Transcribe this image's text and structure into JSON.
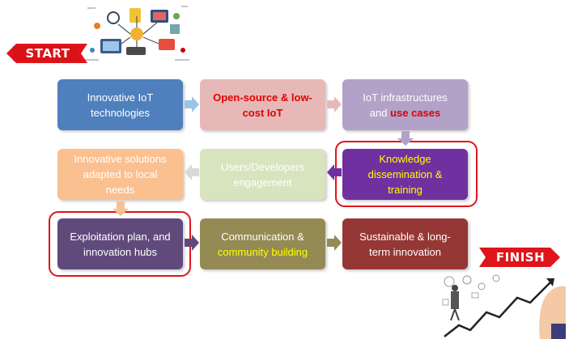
{
  "banners": {
    "start": "START",
    "finish": "FINISH"
  },
  "illustrations": {
    "top": "iot-devices-illustration",
    "bottom": "growth-chart-illustration"
  },
  "colors": {
    "highlight": "#e0141b",
    "blue": "#4f80bd",
    "pink": "#e6b9b8",
    "lavender": "#b2a2c7",
    "peach": "#fac090",
    "lightgreen": "#d7e4bd",
    "purple": "#7030a0",
    "darkpurple": "#604a7b",
    "olive": "#948a54",
    "darkred": "#953735",
    "accent_red": "#e00000",
    "accent_yellow": "#ffff00"
  },
  "boxes": [
    {
      "id": "box1",
      "lines": [
        "Innovative IoT",
        "technologies"
      ]
    },
    {
      "id": "box2",
      "lines": [
        "Open-source & low-",
        "cost IoT"
      ]
    },
    {
      "id": "box3",
      "line1": "IoT infrastructures",
      "line2_plain": "and ",
      "line2_accent": "use cases"
    },
    {
      "id": "box4",
      "lines": [
        "Innovative solutions",
        "adapted to local",
        "needs"
      ]
    },
    {
      "id": "box5",
      "lines": [
        "Users/Developers",
        "engagement"
      ]
    },
    {
      "id": "box6",
      "lines": [
        "Knowledge",
        "dissemination &",
        "training"
      ]
    },
    {
      "id": "box7",
      "lines": [
        "Exploitation plan, and",
        "innovation hubs"
      ]
    },
    {
      "id": "box8",
      "line1": "Communication &",
      "line2_accent": "community building"
    },
    {
      "id": "box9",
      "lines": [
        "Sustainable & long-",
        "term innovation"
      ]
    }
  ]
}
